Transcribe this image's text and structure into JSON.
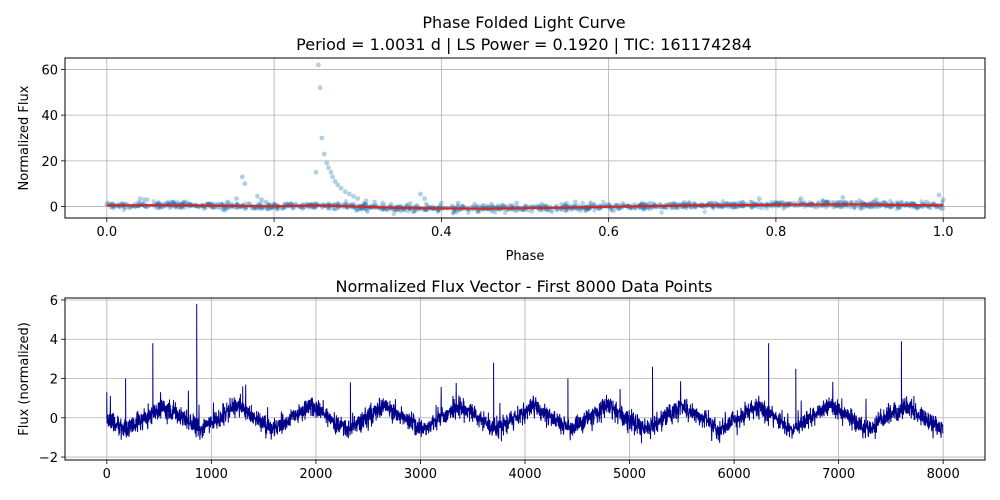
{
  "chart_data": [
    {
      "type": "scatter",
      "title_line1": "Phase Folded Light Curve",
      "title_line2": "Period = 1.0031 d | LS Power = 0.1920 | TIC: 161174284",
      "xlabel": "Phase",
      "ylabel": "Normalized Flux",
      "xlim": [
        -0.05,
        1.05
      ],
      "ylim": [
        -5,
        65
      ],
      "xticks": [
        0.0,
        0.2,
        0.4,
        0.6,
        0.8,
        1.0
      ],
      "xtick_labels": [
        "0.0",
        "0.2",
        "0.4",
        "0.6",
        "0.8",
        "1.0"
      ],
      "yticks": [
        0,
        20,
        40,
        60
      ],
      "ytick_labels": [
        "0",
        "20",
        "40",
        "60"
      ],
      "grid": true,
      "series": [
        {
          "style": "scatter",
          "color": "#1f77b4",
          "alpha": 0.3,
          "x": [
            0.0,
            0.02,
            0.04,
            0.045,
            0.06,
            0.08,
            0.1,
            0.12,
            0.145,
            0.155,
            0.162,
            0.165,
            0.18,
            0.185,
            0.19,
            0.2,
            0.22,
            0.24,
            0.25,
            0.253,
            0.255,
            0.257,
            0.26,
            0.263,
            0.265,
            0.268,
            0.27,
            0.273,
            0.276,
            0.28,
            0.285,
            0.29,
            0.295,
            0.3,
            0.31,
            0.32,
            0.33,
            0.34,
            0.36,
            0.375,
            0.38,
            0.4,
            0.42,
            0.44,
            0.46,
            0.49,
            0.52,
            0.56,
            0.6,
            0.64,
            0.68,
            0.72,
            0.76,
            0.78,
            0.8,
            0.83,
            0.86,
            0.88,
            0.9,
            0.92,
            0.95,
            0.98,
            0.995,
            1.0
          ],
          "y": [
            1.0,
            0.5,
            3.5,
            3.0,
            1.0,
            2.0,
            0.5,
            1.0,
            2.0,
            3.5,
            13.0,
            10.0,
            4.5,
            3.0,
            2.0,
            0.5,
            0.8,
            1.0,
            15.0,
            62.0,
            52.0,
            30.0,
            23.0,
            19.0,
            17.0,
            15.0,
            13.0,
            11.0,
            9.5,
            8.0,
            6.5,
            5.5,
            4.5,
            3.5,
            2.5,
            2.0,
            1.5,
            1.0,
            0.8,
            5.5,
            3.5,
            1.5,
            1.5,
            1.0,
            1.0,
            1.5,
            1.0,
            2.0,
            1.0,
            1.5,
            1.0,
            1.5,
            2.0,
            3.5,
            2.0,
            3.5,
            2.0,
            4.0,
            2.5,
            3.0,
            2.0,
            2.0,
            5.0,
            3.0
          ]
        },
        {
          "style": "line",
          "color": "#d62728",
          "x": [
            0.0,
            0.05,
            0.1,
            0.15,
            0.2,
            0.25,
            0.3,
            0.35,
            0.4,
            0.45,
            0.5,
            0.55,
            0.6,
            0.65,
            0.7,
            0.75,
            0.8,
            0.85,
            0.9,
            0.95,
            1.0
          ],
          "y": [
            0.5,
            0.6,
            0.5,
            0.3,
            0.1,
            0.5,
            0.0,
            -0.6,
            -0.8,
            -0.9,
            -0.7,
            -0.5,
            -0.1,
            0.2,
            0.5,
            0.6,
            0.8,
            0.9,
            0.9,
            0.7,
            0.5
          ]
        }
      ]
    },
    {
      "type": "line",
      "title": "Normalized Flux Vector - First 8000 Data Points",
      "xlabel": "",
      "ylabel": "Flux (normalized)",
      "xlim": [
        -400,
        8400
      ],
      "ylim": [
        -2.15,
        6.1
      ],
      "xticks": [
        0,
        1000,
        2000,
        3000,
        4000,
        5000,
        6000,
        7000,
        8000
      ],
      "xtick_labels": [
        "0",
        "1000",
        "2000",
        "3000",
        "4000",
        "5000",
        "6000",
        "7000",
        "8000"
      ],
      "yticks": [
        -2,
        0,
        2,
        4,
        6
      ],
      "ytick_labels": [
        "−2",
        "0",
        "2",
        "4",
        "6"
      ],
      "grid": true,
      "series": [
        {
          "color": "#00008b",
          "n_points": 8000,
          "baseline_period_points": 710,
          "baseline_amplitude": 0.6,
          "baseline_x": [
            0,
            180,
            540,
            890,
            1250,
            1600,
            1950,
            2310,
            2660,
            3020,
            3370,
            3730,
            4080,
            4440,
            4790,
            5150,
            5500,
            5860,
            6210,
            6570,
            6920,
            7280,
            7630,
            8000
          ],
          "baseline_y": [
            0.0,
            -0.6,
            0.6,
            -0.6,
            0.6,
            -0.6,
            0.6,
            -0.6,
            0.6,
            -0.6,
            0.6,
            -0.6,
            0.6,
            -0.6,
            0.6,
            -0.6,
            0.6,
            -0.6,
            0.6,
            -0.6,
            0.6,
            -0.6,
            0.6,
            -0.6
          ],
          "noise_amplitude": 0.45,
          "spikes_x": [
            0,
            180,
            440,
            860,
            1300,
            2330,
            3700,
            4410,
            5220,
            6330,
            6590,
            7600
          ],
          "spikes_y": [
            1.3,
            2.0,
            3.8,
            5.8,
            1.6,
            1.8,
            2.8,
            2.0,
            2.6,
            3.8,
            2.5,
            3.9
          ]
        }
      ]
    }
  ]
}
